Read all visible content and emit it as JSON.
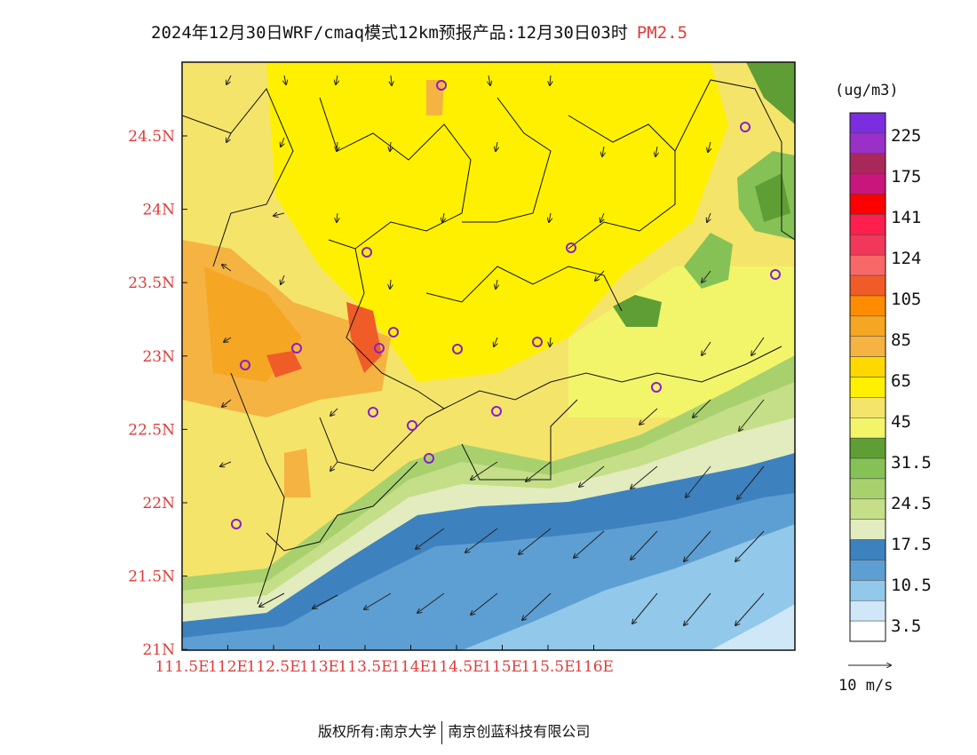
{
  "title": {
    "main": "2024年12月30日WRF/cmaq模式12km预报产品:12月30日03时",
    "variable": "PM2.5"
  },
  "x_ticks": [
    "111.5E",
    "112E",
    "112.5E",
    "113E",
    "113.5E",
    "114E",
    "114.5E",
    "115E",
    "115.5E",
    "116E"
  ],
  "y_ticks": [
    "24.5N",
    "24N",
    "23.5N",
    "23N",
    "22.5N",
    "22N",
    "21.5N",
    "21N"
  ],
  "colorbar": {
    "unit": "(ug/m3)",
    "labels": [
      "225",
      "175",
      "141",
      "124",
      "105",
      "85",
      "65",
      "45",
      "31.5",
      "24.5",
      "17.5",
      "10.5",
      "3.5"
    ],
    "colors_top_to_bottom": [
      "#7b2ee0",
      "#9a30c8",
      "#a8285a",
      "#c8167c",
      "#ff0000",
      "#ff1f4e",
      "#f2385a",
      "#f86868",
      "#ef5c28",
      "#ff8c00",
      "#f5a623",
      "#f5b342",
      "#ffd800",
      "#fff000",
      "#f5e46a",
      "#f2f56a",
      "#5f9e35",
      "#86c156",
      "#a8d16e",
      "#c5df88",
      "#e2ecbe",
      "#3d82bf",
      "#5e9fd3",
      "#92c8ea",
      "#cfe7f6",
      "#ffffff"
    ]
  },
  "wind_reference": {
    "label": "10 m/s"
  },
  "credit": {
    "left": "版权所有:南京大学",
    "right": "南京创蓝科技有限公司"
  },
  "colors": {
    "axis_text": "#e03b3b",
    "station_marker": "#8a1ec8"
  }
}
